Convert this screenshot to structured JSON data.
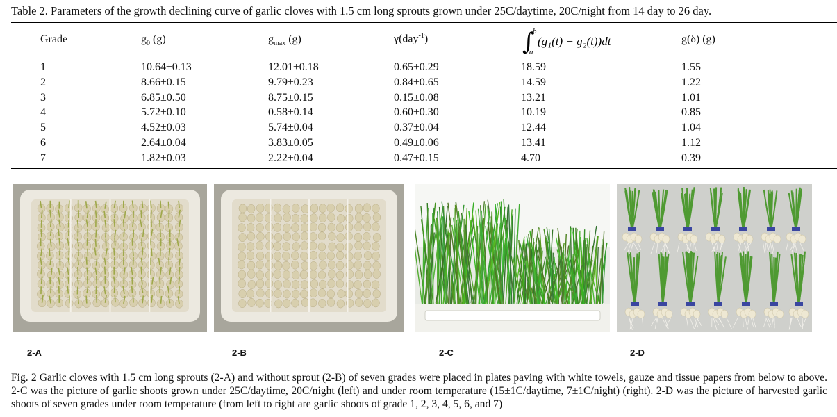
{
  "table": {
    "caption": "Table 2. Parameters of the growth declining curve of garlic cloves with 1.5 cm long sprouts grown under 25C/daytime, 20C/night from 14 day to 26 day.",
    "headers": {
      "grade": "Grade",
      "g0_base": "g",
      "g0_sub": "0",
      "g0_unit": " (g)",
      "gmax_base": "g",
      "gmax_sub": "max",
      "gmax_unit": " (g)",
      "gamma_base": "γ(day",
      "gamma_sup": "-1",
      "gamma_close": ")",
      "integral_body": "(g₁(t) − g₂(t))dt",
      "integral_upper": "b",
      "integral_lower": "a",
      "gdelta": "g(δ) (g)"
    },
    "rows": [
      [
        "1",
        "10.64±0.13",
        "12.01±0.18",
        "0.65±0.29",
        "18.59",
        "1.55"
      ],
      [
        "2",
        "8.66±0.15",
        "9.79±0.23",
        "0.84±0.65",
        "14.59",
        "1.22"
      ],
      [
        "3",
        "6.85±0.50",
        "8.75±0.15",
        "0.15±0.08",
        "13.21",
        "1.01"
      ],
      [
        "4",
        "5.72±0.10",
        "0.58±0.14",
        "0.60±0.30",
        "10.19",
        "0.85"
      ],
      [
        "5",
        "4.52±0.03",
        "5.74±0.04",
        "0.37±0.04",
        "12.44",
        "1.04"
      ],
      [
        "6",
        "2.64±0.04",
        "3.83±0.05",
        "0.49±0.06",
        "13.41",
        "1.12"
      ],
      [
        "7",
        "1.82±0.03",
        "2.22±0.04",
        "0.47±0.15",
        "4.70",
        "0.39"
      ]
    ]
  },
  "figure": {
    "labels": [
      "2-A",
      "2-B",
      "2-C",
      "2-D"
    ],
    "caption": "Fig. 2 Garlic cloves with 1.5 cm long sprouts (2-A) and without sprout (2-B) of seven grades were placed in plates paving with white towels, gauze and tissue papers from below to above. 2-C was the picture of garlic shoots grown under 25C/daytime, 20C/night (left) and under room temperature (15±1C/daytime, 7±1C/night) (right). 2-D was the picture of harvested garlic shoots of seven grades under room temperature (from left to right are garlic shoots of grade 1, 2, 3, 4, 5, 6, and 7)"
  },
  "colors": {
    "tray_bg": "#a8a69c",
    "tray_white": "#ece9e0",
    "clove": "#d8cfae",
    "sprout": "#9ea84a",
    "leaf_green": "#4f9a32",
    "photo_d_bg": "#cfd0cc",
    "band_blue": "#3a46a0"
  }
}
